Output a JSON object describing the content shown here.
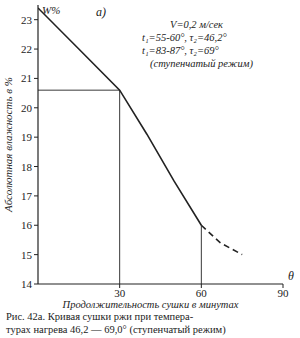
{
  "chart_data": {
    "type": "line",
    "panel": "а)",
    "ylabel_top": "W%",
    "ylabel": "Абсолютная влажность в %",
    "xlabel": "Продолжительность сушки в минутах",
    "xlabel_end": "θ",
    "annotations": [
      "V=0,2 м/сек",
      "t₁=55-60°, τ₂=46,2°",
      "t₁=83-87°, τ₂=69°",
      "(ступенчатый режим)"
    ],
    "caption": [
      "Рис. 42а. Кривая сушки ржи при темпера-",
      "турах нагрева 46,2 — 69,0° (ступенчатый режим)"
    ],
    "xlim": [
      0,
      90
    ],
    "ylim": [
      14,
      23.5
    ],
    "xticks": [
      30,
      60,
      90
    ],
    "yticks": [
      14,
      15,
      16,
      17,
      18,
      19,
      20,
      21,
      22,
      23
    ],
    "grid": false,
    "color": "#222222",
    "series": [
      {
        "line_style": "solid",
        "x": [
          0,
          15,
          30,
          40,
          50,
          60
        ],
        "values": [
          23.4,
          22.0,
          20.6,
          19.1,
          17.5,
          16.0
        ]
      },
      {
        "line_style": "dashed",
        "x": [
          60,
          67,
          75
        ],
        "values": [
          16.0,
          15.4,
          15.0
        ]
      }
    ],
    "guides": [
      {
        "x": 30,
        "y": 20.6
      },
      {
        "x": 60,
        "y": 16.0
      }
    ]
  }
}
